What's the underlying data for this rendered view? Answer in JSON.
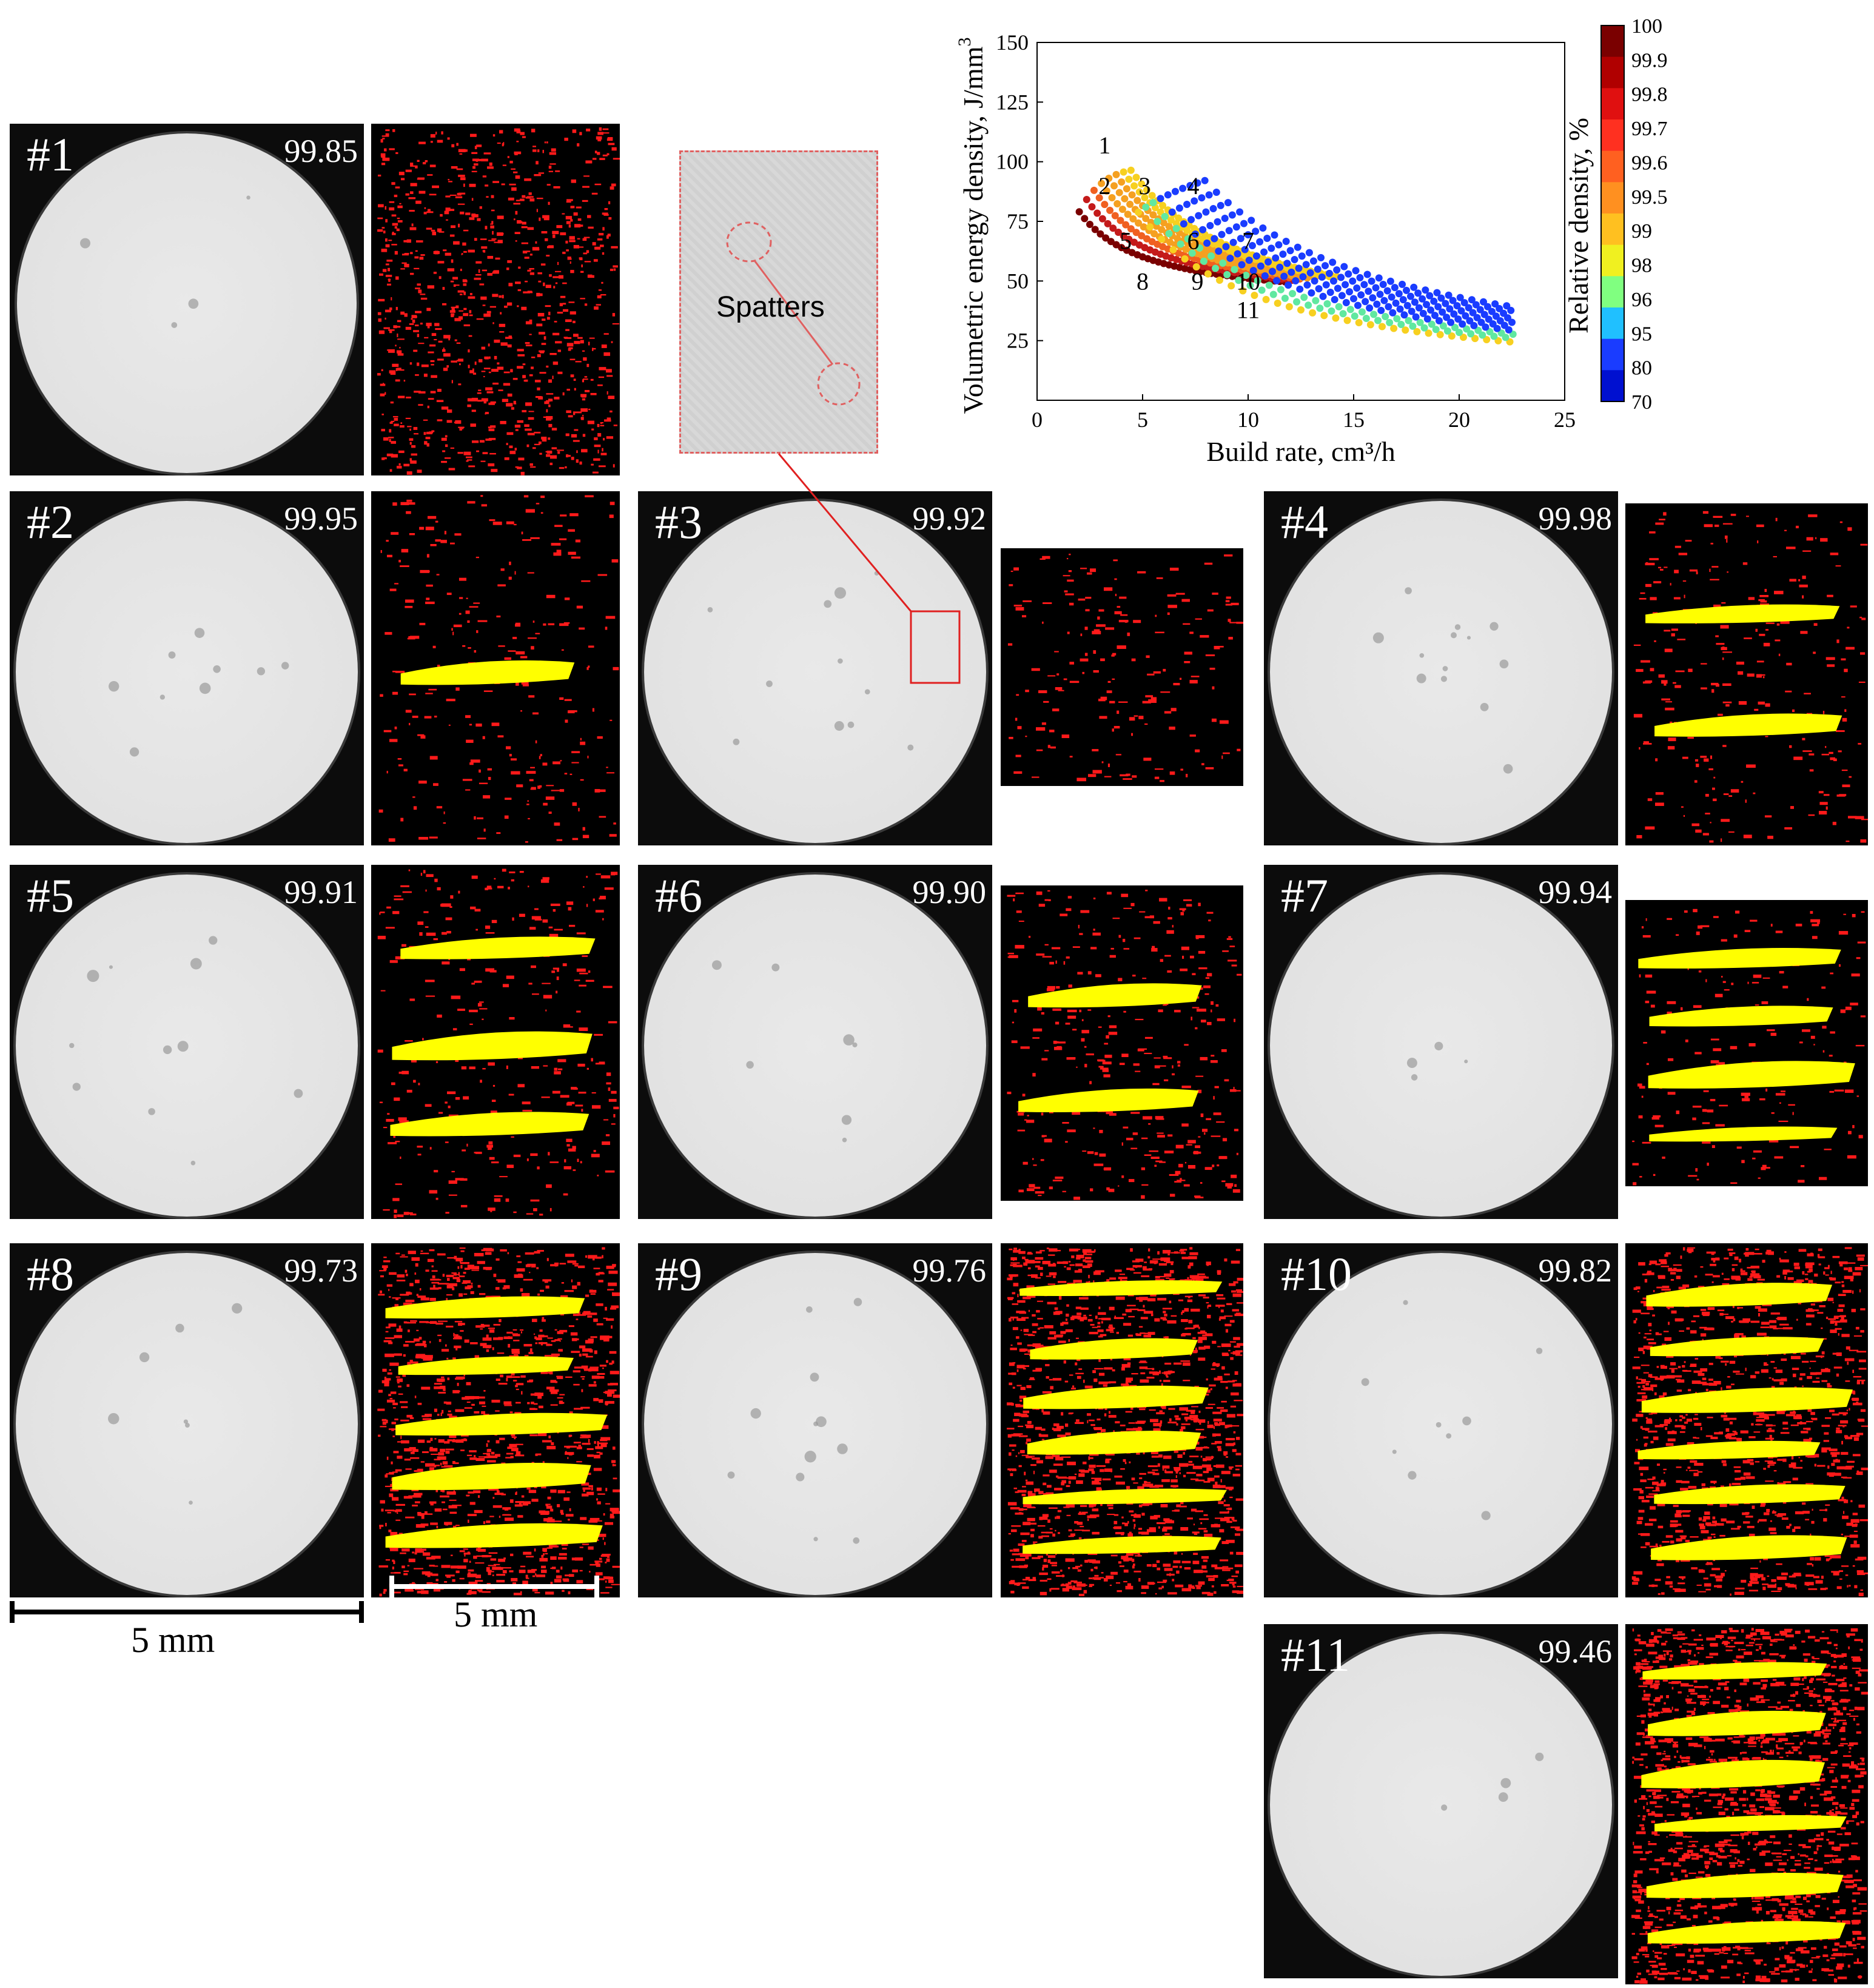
{
  "samples": [
    {
      "id": "#1",
      "density": "99.85"
    },
    {
      "id": "#2",
      "density": "99.95"
    },
    {
      "id": "#3",
      "density": "99.92"
    },
    {
      "id": "#4",
      "density": "99.98"
    },
    {
      "id": "#5",
      "density": "99.91"
    },
    {
      "id": "#6",
      "density": "99.90"
    },
    {
      "id": "#7",
      "density": "99.94"
    },
    {
      "id": "#8",
      "density": "99.73"
    },
    {
      "id": "#9",
      "density": "99.76"
    },
    {
      "id": "#10",
      "density": "99.82"
    },
    {
      "id": "#11",
      "density": "99.46"
    }
  ],
  "inset": {
    "label": "Spatters"
  },
  "scale": {
    "ct_label": "5 mm",
    "map_label": "5 mm"
  },
  "colors": {
    "pores": "#ff1a1a",
    "lack_of_fusion": "#ffff00",
    "background": "#000000",
    "inset_border": "#e06060"
  },
  "chart_data": {
    "type": "scatter",
    "xlabel": "Build rate, cm³/h",
    "ylabel": "Volumetric energy density, J/mm",
    "ylabel_superscript": "3",
    "xlim": [
      0,
      25
    ],
    "ylim": [
      0,
      150
    ],
    "xticks": [
      "0",
      "5",
      "10",
      "15",
      "20",
      "25"
    ],
    "yticks": [
      "25",
      "50",
      "75",
      "100",
      "125",
      "150"
    ],
    "colorbar": {
      "label": "Relative density, %",
      "ticks": [
        "100",
        "99.9",
        "99.8",
        "99.7",
        "99.6",
        "99.5",
        "99",
        "98",
        "96",
        "95",
        "80",
        "70"
      ]
    },
    "marked_points": [
      {
        "label": "1",
        "x": 3.2,
        "y": 107
      },
      {
        "label": "2",
        "x": 3.2,
        "y": 90
      },
      {
        "label": "3",
        "x": 5.1,
        "y": 90
      },
      {
        "label": "4",
        "x": 7.4,
        "y": 90
      },
      {
        "label": "5",
        "x": 4.2,
        "y": 67
      },
      {
        "label": "6",
        "x": 7.4,
        "y": 67
      },
      {
        "label": "7",
        "x": 10.0,
        "y": 67
      },
      {
        "label": "8",
        "x": 5.0,
        "y": 50
      },
      {
        "label": "9",
        "x": 7.6,
        "y": 50
      },
      {
        "label": "10",
        "x": 10.0,
        "y": 50
      },
      {
        "label": "11",
        "x": 10.0,
        "y": 38
      }
    ]
  }
}
